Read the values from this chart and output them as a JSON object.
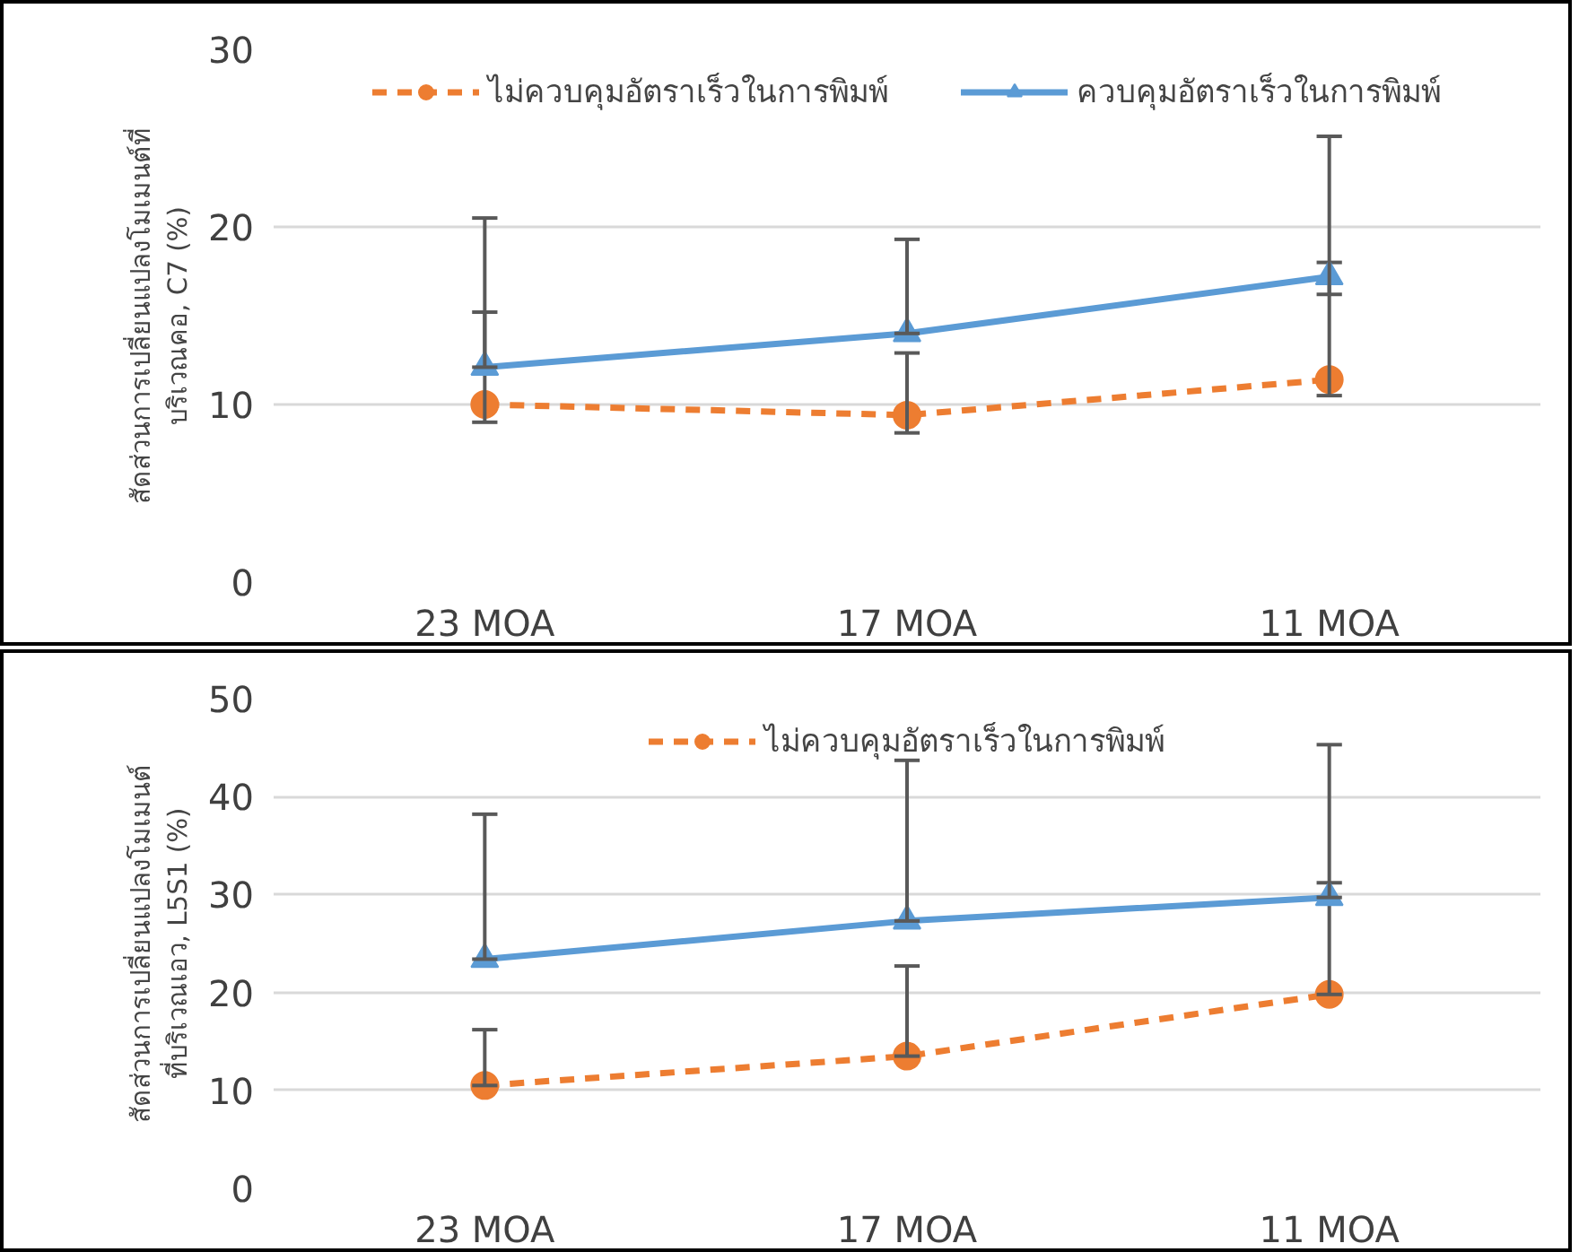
{
  "chart_data": [
    {
      "type": "line",
      "ylabel": "สัดส่วนการเปลี่ยนแปลงโมเมนต์ที่\nบริเวณคอ, C7 (%)",
      "categories": [
        "23 MOA",
        "17 MOA",
        "11 MOA"
      ],
      "ylim": [
        0,
        30
      ],
      "yticks": [
        0,
        10,
        20,
        30
      ],
      "grid": "y",
      "legend": "top",
      "series": [
        {
          "name": "ไม่ควบคุมอัตราเร็วในการพิมพ์",
          "color": "#ed7d31",
          "marker": "circle",
          "line_style": "dashed",
          "values": [
            10.0,
            9.4,
            11.4
          ],
          "errors": [
            [
              9.0,
              15.2
            ],
            [
              8.4,
              12.9
            ],
            [
              10.5,
              18.0
            ]
          ]
        },
        {
          "name": "ควบคุมอัตราเร็วในการพิมพ์",
          "color": "#5b9bd5",
          "marker": "triangle",
          "line_style": "solid",
          "values": [
            12.1,
            14.0,
            17.2
          ],
          "errors": [
            [
              12.1,
              20.5
            ],
            [
              14.0,
              19.3
            ],
            [
              16.2,
              25.1
            ]
          ]
        }
      ]
    },
    {
      "type": "line",
      "ylabel": "สัดส่วนการเปลี่ยนแปลงโมเมนต์\nที่บริเวณเอว, L5S1 (%)",
      "categories": [
        "23 MOA",
        "17 MOA",
        "11 MOA"
      ],
      "ylim": [
        0,
        50
      ],
      "yticks": [
        0,
        10,
        20,
        30,
        40,
        50
      ],
      "grid": "y",
      "legend": "top",
      "series": [
        {
          "name": "ไม่ควบคุมอัตราเร็วในการพิมพ์",
          "color": "#ed7d31",
          "marker": "circle",
          "line_style": "dashed",
          "values": [
            10.5,
            13.5,
            19.8
          ],
          "errors": [
            [
              10.5,
              16.2
            ],
            [
              13.5,
              22.7
            ],
            [
              19.8,
              31.2
            ]
          ]
        },
        {
          "color": "#5b9bd5",
          "marker": "triangle",
          "line_style": "solid",
          "values": [
            23.4,
            27.3,
            29.7
          ],
          "errors": [
            [
              23.4,
              38.2
            ],
            [
              27.3,
              43.7
            ],
            [
              29.7,
              45.3
            ]
          ]
        }
      ]
    }
  ]
}
